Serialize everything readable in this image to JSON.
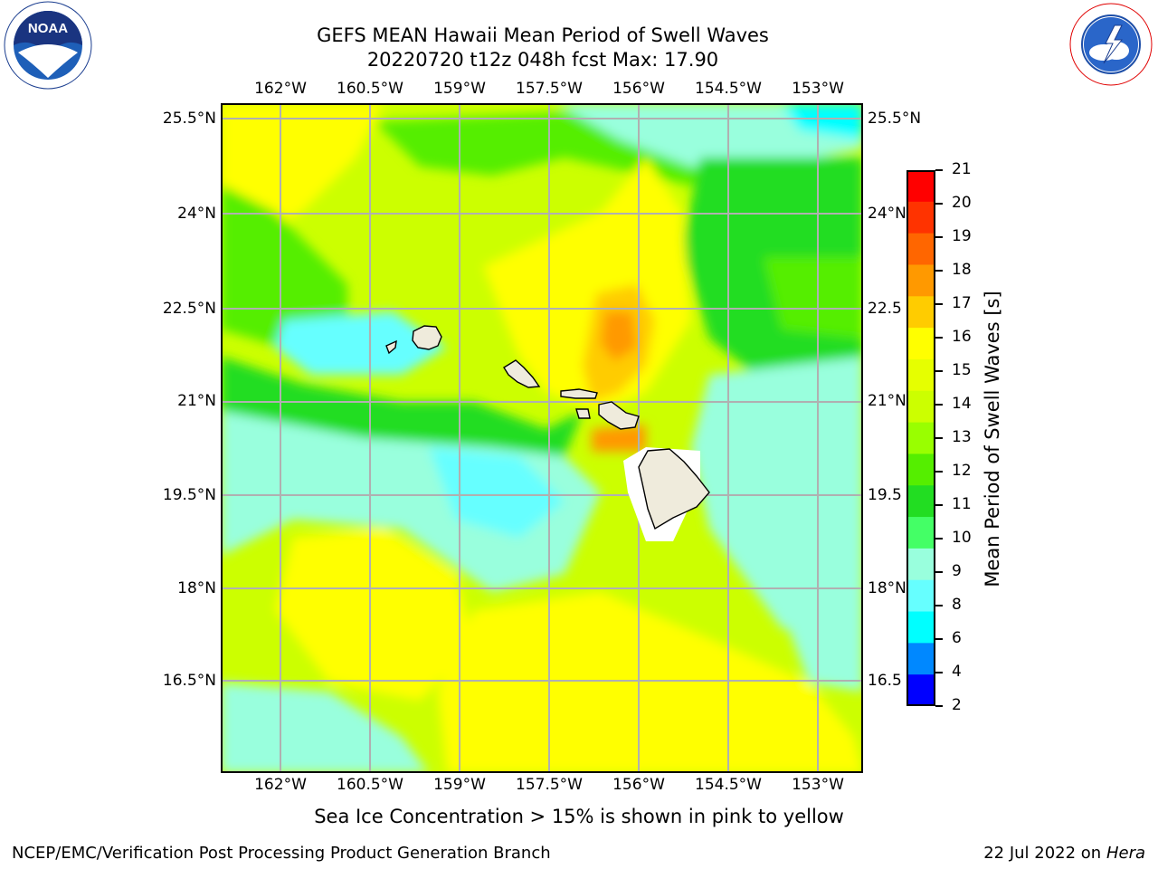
{
  "header": {
    "title_line1": "GEFS MEAN Hawaii Mean Period of Swell Waves",
    "title_line2": "20220720 t12z 048h fcst   Max: 17.90"
  },
  "logos": {
    "left_name": "NOAA",
    "left_ring": "NATIONAL OCEANIC AND ATMOSPHERIC ADMINISTRATION · U.S. DEPARTMENT OF COMMERCE",
    "right_ring": "NATIONAL WEATHER SERVICE"
  },
  "map": {
    "lon_labels": [
      "162°W",
      "160.5°W",
      "159°W",
      "157.5°W",
      "156°W",
      "154.5°W",
      "153°W"
    ],
    "lat_labels_left": [
      "25.5°N",
      "24°N",
      "22.5°N",
      "21°N",
      "19.5°N",
      "18°N",
      "16.5°N"
    ],
    "lat_labels_right": [
      "25.5°N",
      "24°N",
      "22.5",
      "21°N",
      "19.5",
      "18°N",
      "16.5"
    ],
    "grid": true,
    "land_color": "#efebdc"
  },
  "colorbar": {
    "label": "Mean Period of Swell Waves [s]",
    "levels": [
      "21",
      "20",
      "19",
      "18",
      "17",
      "16",
      "15",
      "14",
      "13",
      "12",
      "11",
      "10",
      "9",
      "8",
      "6",
      "4",
      "2"
    ],
    "colors": [
      "#ff0000",
      "#ff3300",
      "#ff6600",
      "#ff9900",
      "#ffcc00",
      "#ffff00",
      "#e6ff00",
      "#ccff00",
      "#99ff00",
      "#55ee00",
      "#22dd22",
      "#44ff66",
      "#99ffdd",
      "#66ffff",
      "#00ffff",
      "#0088ff",
      "#0000ff"
    ]
  },
  "footer": {
    "note": "Sea Ice Concentration > 15% is shown in pink to yellow",
    "left": "NCEP/EMC/Verification Post Processing Product Generation Branch",
    "right_prefix": "22 Jul 2022 on ",
    "right_host": "Hera"
  }
}
